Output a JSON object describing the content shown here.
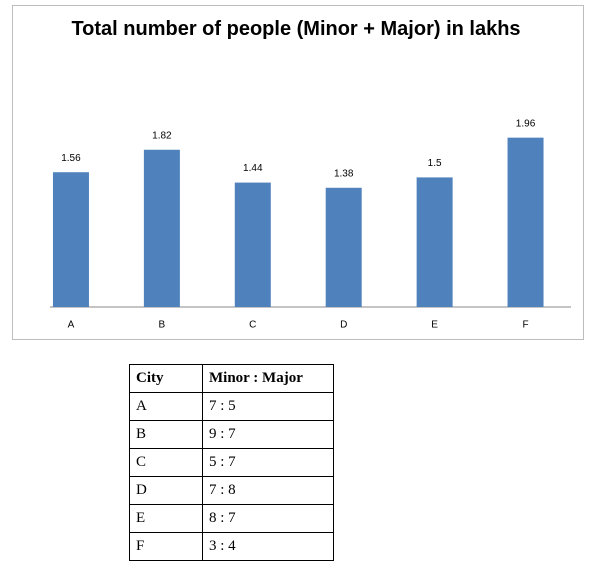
{
  "chart_data": {
    "type": "bar",
    "title": "Total number of people (Minor + Major) in lakhs",
    "categories": [
      "A",
      "B",
      "C",
      "D",
      "E",
      "F"
    ],
    "values": [
      1.56,
      1.82,
      1.44,
      1.38,
      1.5,
      1.96
    ],
    "color": "#4f81bd",
    "ylim": [
      0,
      2.5
    ],
    "grid": false
  },
  "table": {
    "header": [
      "City",
      "Minor : Major"
    ],
    "rows": [
      [
        "A",
        "7 : 5"
      ],
      [
        "B",
        "9 : 7"
      ],
      [
        "C",
        "5 : 7"
      ],
      [
        "D",
        "7 : 8"
      ],
      [
        "E",
        "8 : 7"
      ],
      [
        "F",
        "3 : 4"
      ]
    ]
  }
}
